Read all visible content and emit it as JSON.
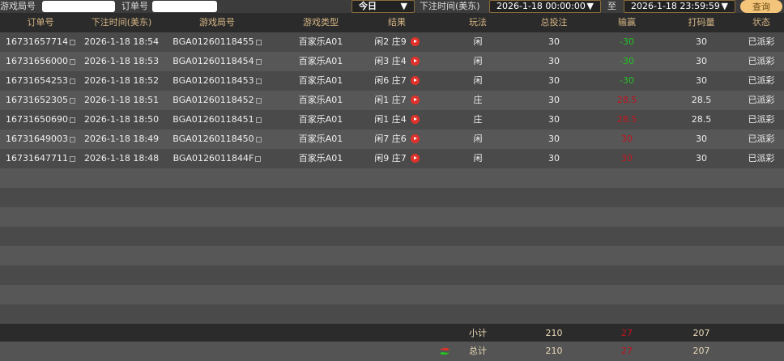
{
  "filters": {
    "round_label": "游戏局号",
    "round_value": "",
    "order_label": "订单号",
    "order_value": "",
    "period": "今日",
    "time_label": "下注时间(美东)",
    "start": "2026-1-18 00:00:00",
    "to": "至",
    "end": "2026-1-18 23:59:59",
    "query": "查询"
  },
  "columns": [
    "订单号",
    "下注时间(美东)",
    "游戏局号",
    "游戏类型",
    "结果",
    "玩法",
    "总投注",
    "输赢",
    "打码量",
    "状态"
  ],
  "rows": [
    {
      "order": "16731657714",
      "time": "2026-1-18 18:54",
      "round": "BGA01260118455",
      "type": "百家乐A01",
      "result": "闲2 庄9",
      "play": "闲",
      "bet": "30",
      "win": "-30",
      "wl": "win",
      "turnover": "30",
      "status": "已派彩"
    },
    {
      "order": "16731656000",
      "time": "2026-1-18 18:53",
      "round": "BGA01260118454",
      "type": "百家乐A01",
      "result": "闲3 庄4",
      "play": "闲",
      "bet": "30",
      "win": "-30",
      "wl": "win",
      "turnover": "30",
      "status": "已派彩"
    },
    {
      "order": "16731654253",
      "time": "2026-1-18 18:52",
      "round": "BGA01260118453",
      "type": "百家乐A01",
      "result": "闲6 庄7",
      "play": "闲",
      "bet": "30",
      "win": "-30",
      "wl": "win",
      "turnover": "30",
      "status": "已派彩"
    },
    {
      "order": "16731652305",
      "time": "2026-1-18 18:51",
      "round": "BGA01260118452",
      "type": "百家乐A01",
      "result": "闲1 庄7",
      "play": "庄",
      "bet": "30",
      "win": "28.5",
      "wl": "loss",
      "turnover": "28.5",
      "status": "已派彩"
    },
    {
      "order": "16731650690",
      "time": "2026-1-18 18:50",
      "round": "BGA01260118451",
      "type": "百家乐A01",
      "result": "闲1 庄4",
      "play": "庄",
      "bet": "30",
      "win": "28.5",
      "wl": "loss",
      "turnover": "28.5",
      "status": "已派彩"
    },
    {
      "order": "16731649003",
      "time": "2026-1-18 18:49",
      "round": "BGA01260118450",
      "type": "百家乐A01",
      "result": "闲7 庄6",
      "play": "闲",
      "bet": "30",
      "win": "30",
      "wl": "loss",
      "turnover": "30",
      "status": "已派彩"
    },
    {
      "order": "16731647711",
      "time": "2026-1-18 18:48",
      "round": "BGA0126011844F",
      "type": "百家乐A01",
      "result": "闲9 庄7",
      "play": "闲",
      "bet": "30",
      "win": "30",
      "wl": "loss",
      "turnover": "30",
      "status": "已派彩"
    }
  ],
  "subtotal": {
    "label": "小计",
    "bet": "210",
    "win": "27",
    "turnover": "207"
  },
  "total": {
    "label": "总计",
    "bet": "210",
    "win": "27",
    "turnover": "207"
  },
  "colors": {
    "header_text": "#d4b483",
    "win": "#22c322",
    "loss": "#c0141e",
    "button": "#f3c57a"
  }
}
